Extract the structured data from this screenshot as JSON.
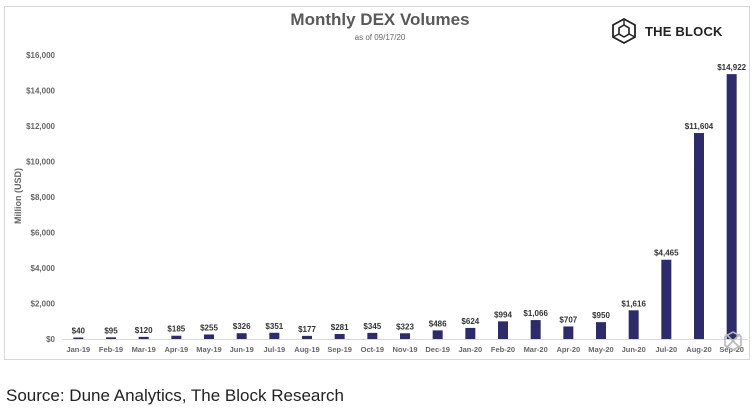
{
  "brand": {
    "name": "THE BLOCK",
    "logo_icon": "cube-logo-icon"
  },
  "source": "Source: Dune Analytics, The Block Research",
  "colors": {
    "bar": "#2d2b6b",
    "axis_text": "#666666",
    "label_text": "#333333"
  },
  "chart_data": {
    "type": "bar",
    "title": "Monthly DEX Volumes",
    "subtitle": "as of 09/17/20",
    "xlabel": "",
    "ylabel": "Million (USD)",
    "ylim": [
      0,
      16000
    ],
    "y_ticks": [
      {
        "value": 0,
        "label": "$0"
      },
      {
        "value": 2000,
        "label": "$2,000"
      },
      {
        "value": 4000,
        "label": "$4,000"
      },
      {
        "value": 6000,
        "label": "$6,000"
      },
      {
        "value": 8000,
        "label": "$8,000"
      },
      {
        "value": 10000,
        "label": "$10,000"
      },
      {
        "value": 12000,
        "label": "$12,000"
      },
      {
        "value": 14000,
        "label": "$14,000"
      },
      {
        "value": 16000,
        "label": "$16,000"
      }
    ],
    "grid": false,
    "legend": "none",
    "categories": [
      "Jan-19",
      "Feb-19",
      "Mar-19",
      "Apr-19",
      "May-19",
      "Jun-19",
      "Jul-19",
      "Aug-19",
      "Sep-19",
      "Oct-19",
      "Nov-19",
      "Dec-19",
      "Jan-20",
      "Feb-20",
      "Mar-20",
      "Apr-20",
      "May-20",
      "Jun-20",
      "Jul-20",
      "Aug-20",
      "Sep-20"
    ],
    "values": [
      40,
      95,
      120,
      185,
      255,
      326,
      351,
      177,
      281,
      345,
      323,
      486,
      624,
      994,
      1066,
      707,
      950,
      1616,
      4465,
      11604,
      14922
    ],
    "data_labels": [
      "$40",
      "$95",
      "$120",
      "$185",
      "$255",
      "$326",
      "$351",
      "$177",
      "$281",
      "$345",
      "$323",
      "$486",
      "$624",
      "$994",
      "$1,066",
      "$707",
      "$950",
      "$1,616",
      "$4,465",
      "$11,604",
      "$14,922"
    ]
  }
}
